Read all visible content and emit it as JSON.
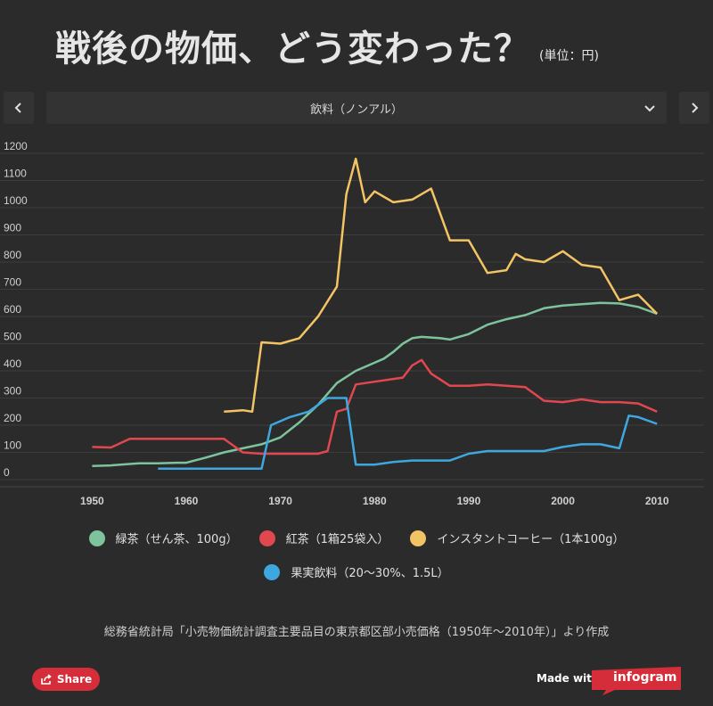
{
  "header": {
    "title": "戦後の物価、どう変わった？",
    "unit": "(単位：円)"
  },
  "selector": {
    "label": "飲料（ノンアル）",
    "prev_icon": "chevron-left-icon",
    "next_icon": "chevron-right-icon",
    "dropdown_icon": "chevron-down-icon"
  },
  "chart_data": {
    "type": "line",
    "title": "",
    "xlabel": "",
    "ylabel": "",
    "xlim": [
      1944,
      2015
    ],
    "ylim": [
      0,
      1200
    ],
    "y_ticks": [
      "0",
      "100",
      "200",
      "300",
      "400",
      "500",
      "600",
      "700",
      "800",
      "900",
      "1000",
      "1100",
      "1200"
    ],
    "x_ticks": [
      "1950",
      "1960",
      "1970",
      "1980",
      "1990",
      "2000",
      "2010"
    ],
    "grid": true,
    "series": [
      {
        "name": "緑茶（せん茶、100g）",
        "color": "#7dc49c",
        "x": [
          1950,
          1952,
          1953,
          1955,
          1957,
          1959,
          1960,
          1962,
          1964,
          1966,
          1968,
          1970,
          1972,
          1974,
          1976,
          1978,
          1980,
          1981,
          1982,
          1983,
          1984,
          1985,
          1987,
          1988,
          1990,
          1992,
          1994,
          1996,
          1998,
          2000,
          2002,
          2004,
          2006,
          2008,
          2010
        ],
        "values": [
          50,
          52,
          55,
          60,
          60,
          62,
          62,
          80,
          100,
          115,
          130,
          155,
          210,
          275,
          355,
          400,
          430,
          445,
          470,
          500,
          520,
          525,
          520,
          515,
          535,
          570,
          590,
          605,
          630,
          640,
          645,
          650,
          648,
          635,
          610
        ]
      },
      {
        "name": "紅茶（1箱25袋入）",
        "color": "#e0474f",
        "x": [
          1950,
          1952,
          1954,
          1956,
          1960,
          1964,
          1966,
          1968,
          1970,
          1972,
          1974,
          1975,
          1976,
          1977,
          1978,
          1980,
          1982,
          1983,
          1984,
          1985,
          1986,
          1988,
          1990,
          1992,
          1994,
          1996,
          1998,
          2000,
          2002,
          2004,
          2006,
          2008,
          2010
        ],
        "values": [
          120,
          118,
          150,
          150,
          150,
          150,
          100,
          95,
          95,
          95,
          95,
          105,
          250,
          260,
          350,
          360,
          370,
          375,
          420,
          440,
          390,
          345,
          345,
          350,
          345,
          340,
          290,
          285,
          295,
          285,
          285,
          280,
          250
        ]
      },
      {
        "name": "インスタントコーヒー（1本100g）",
        "color": "#f2c464",
        "x": [
          1964,
          1966,
          1967,
          1968,
          1970,
          1972,
          1974,
          1976,
          1977,
          1978,
          1979,
          1980,
          1982,
          1984,
          1986,
          1988,
          1990,
          1992,
          1994,
          1995,
          1996,
          1998,
          2000,
          2002,
          2004,
          2006,
          2008,
          2010
        ],
        "values": [
          250,
          255,
          250,
          505,
          500,
          520,
          600,
          710,
          1050,
          1180,
          1020,
          1060,
          1020,
          1030,
          1070,
          880,
          880,
          760,
          770,
          830,
          810,
          800,
          840,
          790,
          780,
          660,
          680,
          610
        ]
      },
      {
        "name": "果実飲料（20〜30%、1.5L）",
        "color": "#3fa7df",
        "x": [
          1957,
          1960,
          1964,
          1968,
          1969,
          1971,
          1973,
          1975,
          1977,
          1978,
          1980,
          1982,
          1984,
          1986,
          1988,
          1990,
          1992,
          1994,
          1996,
          1998,
          2000,
          2002,
          2004,
          2006,
          2007,
          2008,
          2010
        ],
        "values": [
          40,
          40,
          40,
          40,
          200,
          230,
          250,
          300,
          300,
          55,
          55,
          65,
          70,
          70,
          70,
          95,
          105,
          105,
          105,
          105,
          120,
          130,
          130,
          115,
          235,
          230,
          205
        ]
      }
    ]
  },
  "legend": {
    "row1": [
      {
        "label": "緑茶（せん茶、100g）",
        "color": "#7dc49c"
      },
      {
        "label": "紅茶（1箱25袋入）",
        "color": "#e0474f"
      },
      {
        "label": "インスタントコーヒー（1本100g）",
        "color": "#f2c464"
      }
    ],
    "row2": [
      {
        "label": "果実飲料（20〜30%、1.5L）",
        "color": "#3fa7df"
      }
    ]
  },
  "source": "総務省統計局「小売物価統計調査主要品目の東京都区部小売価格（1950年〜2010年）」より作成",
  "footer": {
    "share_label": "Share",
    "share_icon": "share-icon",
    "made_with": "Made with",
    "brand": "infogram"
  }
}
